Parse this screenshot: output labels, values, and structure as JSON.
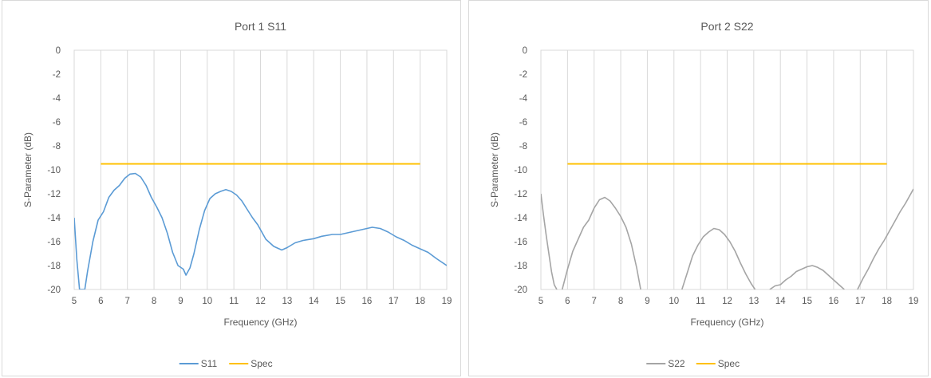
{
  "chart_data": [
    {
      "type": "line",
      "title": "Port 1 S11",
      "xlabel": "Frequency (GHz)",
      "ylabel": "S-Parameter (dB)",
      "xlim": [
        5,
        19
      ],
      "ylim": [
        -20,
        0
      ],
      "xticks": [
        5,
        6,
        7,
        8,
        9,
        10,
        11,
        12,
        13,
        14,
        15,
        16,
        17,
        18,
        19
      ],
      "yticks": [
        0,
        -2,
        -4,
        -6,
        -8,
        -10,
        -12,
        -14,
        -16,
        -18,
        -20
      ],
      "grid": "vertical",
      "legend": "bottom",
      "series": [
        {
          "name": "S11",
          "color": "#5b9bd5",
          "points": [
            [
              5.0,
              -14.0
            ],
            [
              5.1,
              -17.5
            ],
            [
              5.2,
              -20.0
            ],
            [
              5.4,
              -20.0
            ],
            [
              5.5,
              -18.5
            ],
            [
              5.7,
              -16.0
            ],
            [
              5.9,
              -14.2
            ],
            [
              6.1,
              -13.5
            ],
            [
              6.3,
              -12.3
            ],
            [
              6.5,
              -11.7
            ],
            [
              6.7,
              -11.3
            ],
            [
              6.9,
              -10.7
            ],
            [
              7.1,
              -10.35
            ],
            [
              7.3,
              -10.3
            ],
            [
              7.5,
              -10.6
            ],
            [
              7.7,
              -11.3
            ],
            [
              7.9,
              -12.3
            ],
            [
              8.1,
              -13.1
            ],
            [
              8.3,
              -14.0
            ],
            [
              8.5,
              -15.3
            ],
            [
              8.7,
              -16.9
            ],
            [
              8.9,
              -18.0
            ],
            [
              9.1,
              -18.3
            ],
            [
              9.2,
              -18.8
            ],
            [
              9.35,
              -18.2
            ],
            [
              9.5,
              -17.0
            ],
            [
              9.7,
              -15.0
            ],
            [
              9.9,
              -13.4
            ],
            [
              10.1,
              -12.4
            ],
            [
              10.3,
              -12.0
            ],
            [
              10.5,
              -11.8
            ],
            [
              10.7,
              -11.65
            ],
            [
              10.9,
              -11.8
            ],
            [
              11.1,
              -12.1
            ],
            [
              11.3,
              -12.6
            ],
            [
              11.5,
              -13.3
            ],
            [
              11.7,
              -14.0
            ],
            [
              11.9,
              -14.6
            ],
            [
              12.0,
              -15.0
            ],
            [
              12.2,
              -15.8
            ],
            [
              12.5,
              -16.4
            ],
            [
              12.8,
              -16.7
            ],
            [
              13.0,
              -16.5
            ],
            [
              13.3,
              -16.1
            ],
            [
              13.6,
              -15.9
            ],
            [
              14.0,
              -15.75
            ],
            [
              14.3,
              -15.55
            ],
            [
              14.7,
              -15.4
            ],
            [
              15.0,
              -15.4
            ],
            [
              15.4,
              -15.2
            ],
            [
              15.8,
              -15.0
            ],
            [
              16.2,
              -14.8
            ],
            [
              16.5,
              -14.9
            ],
            [
              16.8,
              -15.2
            ],
            [
              17.1,
              -15.6
            ],
            [
              17.4,
              -15.9
            ],
            [
              17.7,
              -16.3
            ],
            [
              18.0,
              -16.6
            ],
            [
              18.3,
              -16.9
            ],
            [
              18.6,
              -17.4
            ],
            [
              19.0,
              -18.0
            ]
          ]
        },
        {
          "name": "Spec",
          "color": "#ffc000",
          "points": [
            [
              6,
              -9.5
            ],
            [
              18,
              -9.5
            ]
          ]
        }
      ]
    },
    {
      "type": "line",
      "title": "Port 2 S22",
      "xlabel": "Frequency (GHz)",
      "ylabel": "S-Parameter (dB)",
      "xlim": [
        5,
        19
      ],
      "ylim": [
        -20,
        0
      ],
      "xticks": [
        5,
        6,
        7,
        8,
        9,
        10,
        11,
        12,
        13,
        14,
        15,
        16,
        17,
        18,
        19
      ],
      "yticks": [
        0,
        -2,
        -4,
        -6,
        -8,
        -10,
        -12,
        -14,
        -16,
        -18,
        -20
      ],
      "grid": "vertical",
      "legend": "bottom",
      "series": [
        {
          "name": "S22",
          "color": "#a5a5a5",
          "points": [
            [
              5.0,
              -12.0
            ],
            [
              5.1,
              -13.8
            ],
            [
              5.2,
              -15.5
            ],
            [
              5.3,
              -17.0
            ],
            [
              5.4,
              -18.5
            ],
            [
              5.5,
              -19.6
            ],
            [
              5.6,
              -20.0
            ],
            [
              null,
              null
            ],
            [
              5.8,
              -20.0
            ],
            [
              6.0,
              -18.3
            ],
            [
              6.2,
              -16.8
            ],
            [
              6.4,
              -15.8
            ],
            [
              6.6,
              -14.8
            ],
            [
              6.8,
              -14.2
            ],
            [
              7.0,
              -13.2
            ],
            [
              7.2,
              -12.5
            ],
            [
              7.4,
              -12.3
            ],
            [
              7.6,
              -12.6
            ],
            [
              7.8,
              -13.2
            ],
            [
              8.0,
              -13.9
            ],
            [
              8.2,
              -14.8
            ],
            [
              8.4,
              -16.2
            ],
            [
              8.6,
              -18.2
            ],
            [
              8.75,
              -20.0
            ],
            [
              null,
              null
            ],
            [
              10.3,
              -20.0
            ],
            [
              10.5,
              -18.6
            ],
            [
              10.7,
              -17.2
            ],
            [
              10.9,
              -16.3
            ],
            [
              11.1,
              -15.6
            ],
            [
              11.3,
              -15.2
            ],
            [
              11.5,
              -14.9
            ],
            [
              11.7,
              -15.0
            ],
            [
              11.9,
              -15.4
            ],
            [
              12.1,
              -16.0
            ],
            [
              12.3,
              -16.8
            ],
            [
              12.5,
              -17.8
            ],
            [
              12.7,
              -18.7
            ],
            [
              12.9,
              -19.5
            ],
            [
              13.05,
              -20.0
            ],
            [
              null,
              null
            ],
            [
              13.6,
              -20.0
            ],
            [
              13.8,
              -19.7
            ],
            [
              14.0,
              -19.6
            ],
            [
              14.2,
              -19.2
            ],
            [
              14.4,
              -18.9
            ],
            [
              14.6,
              -18.5
            ],
            [
              14.8,
              -18.3
            ],
            [
              15.0,
              -18.1
            ],
            [
              15.2,
              -18.0
            ],
            [
              15.4,
              -18.15
            ],
            [
              15.6,
              -18.4
            ],
            [
              15.8,
              -18.8
            ],
            [
              16.0,
              -19.2
            ],
            [
              16.2,
              -19.6
            ],
            [
              16.4,
              -20.0
            ],
            [
              null,
              null
            ],
            [
              16.9,
              -20.0
            ],
            [
              17.1,
              -19.1
            ],
            [
              17.3,
              -18.3
            ],
            [
              17.5,
              -17.4
            ],
            [
              17.7,
              -16.6
            ],
            [
              17.9,
              -15.9
            ],
            [
              18.1,
              -15.1
            ],
            [
              18.3,
              -14.3
            ],
            [
              18.5,
              -13.5
            ],
            [
              18.7,
              -12.8
            ],
            [
              18.85,
              -12.2
            ],
            [
              19.0,
              -11.6
            ]
          ]
        },
        {
          "name": "Spec",
          "color": "#ffc000",
          "points": [
            [
              6,
              -9.5
            ],
            [
              18,
              -9.5
            ]
          ]
        }
      ]
    }
  ]
}
